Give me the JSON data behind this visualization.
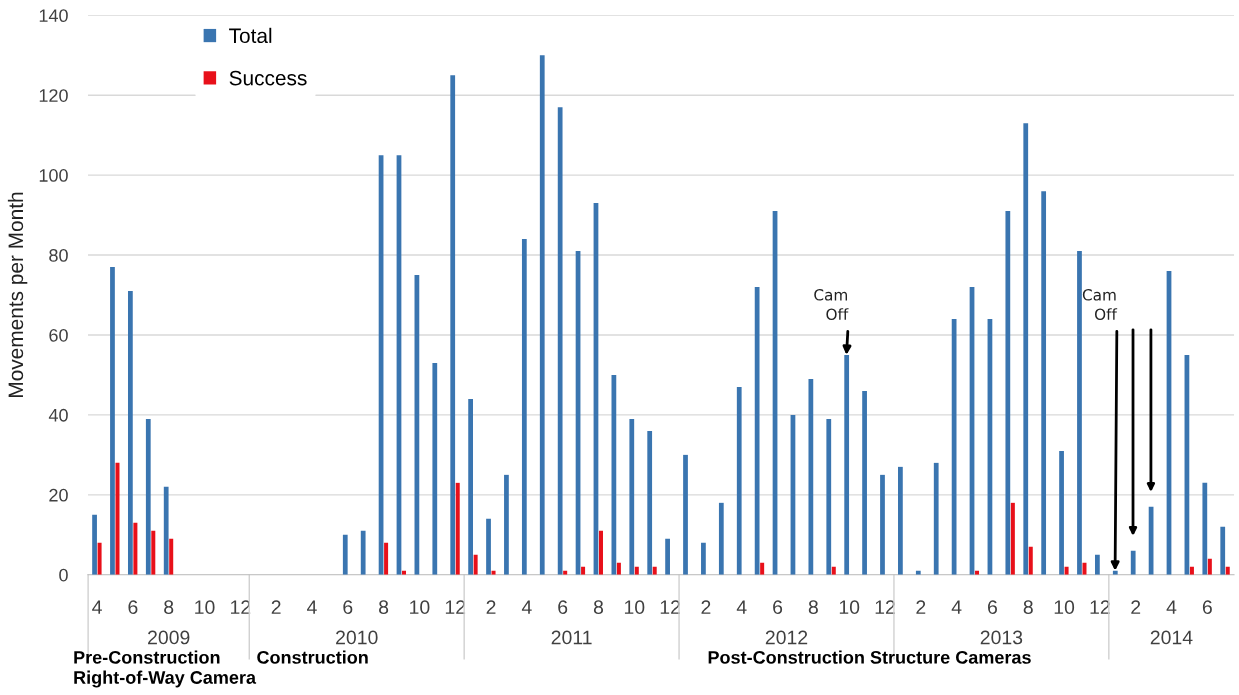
{
  "chart_data": {
    "type": "bar",
    "ylabel": "Movements per Month",
    "x": [
      "2009-04",
      "2009-05",
      "2009-06",
      "2009-07",
      "2009-08",
      "2009-09",
      "2009-10",
      "2009-11",
      "2009-12",
      "2010-01",
      "2010-02",
      "2010-03",
      "2010-04",
      "2010-05",
      "2010-06",
      "2010-07",
      "2010-08",
      "2010-09",
      "2010-10",
      "2010-11",
      "2010-12",
      "2011-01",
      "2011-02",
      "2011-03",
      "2011-04",
      "2011-05",
      "2011-06",
      "2011-07",
      "2011-08",
      "2011-09",
      "2011-10",
      "2011-11",
      "2011-12",
      "2012-01",
      "2012-02",
      "2012-03",
      "2012-04",
      "2012-05",
      "2012-06",
      "2012-07",
      "2012-08",
      "2012-09",
      "2012-10",
      "2012-11",
      "2012-12",
      "2013-01",
      "2013-02",
      "2013-03",
      "2013-04",
      "2013-05",
      "2013-06",
      "2013-07",
      "2013-08",
      "2013-09",
      "2013-10",
      "2013-11",
      "2013-12",
      "2014-01",
      "2014-02",
      "2014-03",
      "2014-04",
      "2014-05",
      "2014-06",
      "2014-07"
    ],
    "series": [
      {
        "name": "Total",
        "color": "#3a75b0",
        "values": [
          15,
          77,
          71,
          39,
          22,
          null,
          null,
          null,
          null,
          null,
          null,
          null,
          null,
          null,
          10,
          11,
          105,
          105,
          75,
          53,
          125,
          44,
          14,
          25,
          84,
          130,
          117,
          81,
          93,
          50,
          39,
          36,
          9,
          30,
          8,
          18,
          47,
          72,
          91,
          40,
          49,
          39,
          55,
          46,
          25,
          27,
          1,
          28,
          64,
          72,
          64,
          91,
          113,
          96,
          31,
          81,
          5,
          1,
          6,
          17,
          76,
          55,
          23,
          12
        ]
      },
      {
        "name": "Success",
        "color": "#e8101a",
        "values": [
          8,
          28,
          13,
          11,
          9,
          null,
          null,
          null,
          null,
          null,
          null,
          null,
          null,
          null,
          null,
          null,
          8,
          1,
          null,
          null,
          23,
          5,
          1,
          null,
          null,
          null,
          1,
          2,
          11,
          3,
          2,
          2,
          null,
          null,
          null,
          null,
          null,
          3,
          null,
          null,
          null,
          2,
          null,
          null,
          null,
          null,
          null,
          null,
          null,
          1,
          null,
          18,
          7,
          null,
          2,
          3,
          null,
          null,
          null,
          null,
          null,
          2,
          4,
          2
        ]
      }
    ],
    "xlim": [
      "2009-03-16",
      "2014-07-16"
    ],
    "xticks": [
      {
        "value": "2009-04",
        "label": "4"
      },
      {
        "value": "2009-06",
        "label": "6"
      },
      {
        "value": "2009-08",
        "label": "8"
      },
      {
        "value": "2009-10",
        "label": "10"
      },
      {
        "value": "2009-12",
        "label": "12"
      },
      {
        "value": "2010-02",
        "label": "2"
      },
      {
        "value": "2010-04",
        "label": "4"
      },
      {
        "value": "2010-06",
        "label": "6"
      },
      {
        "value": "2010-08",
        "label": "8"
      },
      {
        "value": "2010-10",
        "label": "10"
      },
      {
        "value": "2010-12",
        "label": "12"
      },
      {
        "value": "2011-02",
        "label": "2"
      },
      {
        "value": "2011-04",
        "label": "4"
      },
      {
        "value": "2011-06",
        "label": "6"
      },
      {
        "value": "2011-08",
        "label": "8"
      },
      {
        "value": "2011-10",
        "label": "10"
      },
      {
        "value": "2011-12",
        "label": "12"
      },
      {
        "value": "2012-02",
        "label": "2"
      },
      {
        "value": "2012-04",
        "label": "4"
      },
      {
        "value": "2012-06",
        "label": "6"
      },
      {
        "value": "2012-08",
        "label": "8"
      },
      {
        "value": "2012-10",
        "label": "10"
      },
      {
        "value": "2012-12",
        "label": "12"
      },
      {
        "value": "2013-02",
        "label": "2"
      },
      {
        "value": "2013-04",
        "label": "4"
      },
      {
        "value": "2013-06",
        "label": "6"
      },
      {
        "value": "2013-08",
        "label": "8"
      },
      {
        "value": "2013-10",
        "label": "10"
      },
      {
        "value": "2013-12",
        "label": "12"
      },
      {
        "value": "2014-02",
        "label": "2"
      },
      {
        "value": "2014-04",
        "label": "4"
      },
      {
        "value": "2014-06",
        "label": "6"
      }
    ],
    "ylim": [
      0,
      140
    ],
    "yticks": [
      0,
      20,
      40,
      60,
      80,
      100,
      120,
      140
    ],
    "grid": "y",
    "legend": "top left",
    "annotations": [
      "2009",
      "2010",
      "2011",
      "2012",
      "2013",
      "2014",
      "Pre-Construction\nRight-of-Way Camera",
      "Construction",
      "Post-Construction Structure Cameras",
      {
        "text": "Cam\nOff",
        "x": "2012-10",
        "y": 55
      },
      {
        "text": "Cam\nOff",
        "x": "2014-01",
        "y": 1
      }
    ]
  }
}
